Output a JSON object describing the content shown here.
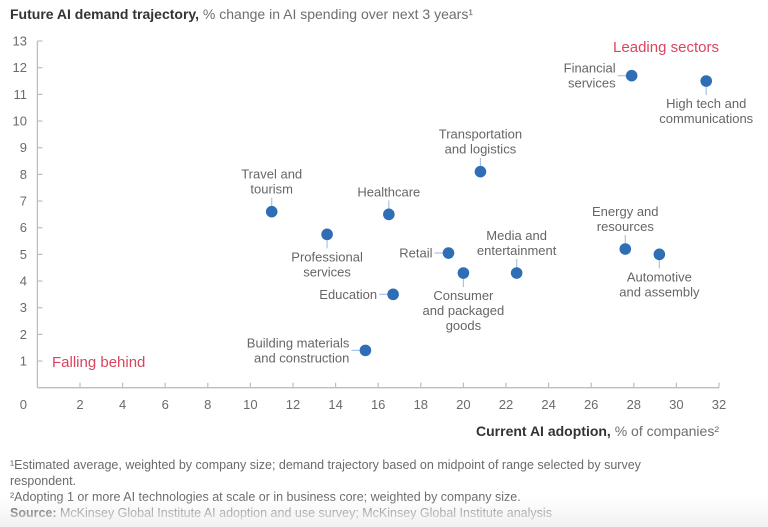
{
  "chart_data": {
    "type": "scatter",
    "title_bold": "Future AI demand trajectory,",
    "title_rest": " % change in AI spending over next 3 years¹",
    "xlabel_bold": "Current AI adoption,",
    "xlabel_rest": " % of companies²",
    "xlim": [
      0,
      32
    ],
    "ylim": [
      0,
      13
    ],
    "xticks": [
      0,
      2,
      4,
      6,
      8,
      10,
      12,
      14,
      16,
      18,
      20,
      22,
      24,
      26,
      28,
      30,
      32
    ],
    "yticks": [
      1,
      2,
      3,
      4,
      5,
      6,
      7,
      8,
      9,
      10,
      11,
      12,
      13
    ],
    "grid": false,
    "point_color": "#2f6db5",
    "annotation_color": "#d9455f",
    "annotations": [
      {
        "text": "Leading sectors",
        "position": "top-right"
      },
      {
        "text": "Falling behind",
        "position": "bottom-left"
      }
    ],
    "points": [
      {
        "label": [
          "Financial",
          "services"
        ],
        "x": 27.9,
        "y": 11.7,
        "label_side": "left"
      },
      {
        "label": [
          "High tech and",
          "communications"
        ],
        "x": 31.4,
        "y": 11.5,
        "label_side": "below"
      },
      {
        "label": [
          "Transportation",
          "and logistics"
        ],
        "x": 20.8,
        "y": 8.1,
        "label_side": "above"
      },
      {
        "label": [
          "Travel and",
          "tourism"
        ],
        "x": 11.0,
        "y": 6.6,
        "label_side": "above"
      },
      {
        "label": [
          "Healthcare"
        ],
        "x": 16.5,
        "y": 6.5,
        "label_side": "above"
      },
      {
        "label": [
          "Professional",
          "services"
        ],
        "x": 13.6,
        "y": 5.75,
        "label_side": "below"
      },
      {
        "label": [
          "Retail"
        ],
        "x": 19.3,
        "y": 5.05,
        "label_side": "left"
      },
      {
        "label": [
          "Media and",
          "entertainment"
        ],
        "x": 22.5,
        "y": 4.3,
        "label_side": "above"
      },
      {
        "label": [
          "Consumer",
          "and packaged",
          "goods"
        ],
        "x": 20.0,
        "y": 4.3,
        "label_side": "below"
      },
      {
        "label": [
          "Education"
        ],
        "x": 16.7,
        "y": 3.5,
        "label_side": "left"
      },
      {
        "label": [
          "Energy and",
          "resources"
        ],
        "x": 27.6,
        "y": 5.2,
        "label_side": "above"
      },
      {
        "label": [
          "Automotive",
          "and assembly"
        ],
        "x": 29.2,
        "y": 5.0,
        "label_side": "below"
      },
      {
        "label": [
          "Building materials",
          "and construction"
        ],
        "x": 15.4,
        "y": 1.4,
        "label_side": "left"
      }
    ]
  },
  "footnotes": {
    "note1": "¹Estimated average, weighted by company size; demand trajectory based on midpoint of range selected by survey respondent.",
    "note2": "²Adopting 1 or more AI technologies at scale or in business core; weighted by company size.",
    "source_label": "Source:",
    "source_text": " McKinsey Global Institute AI adoption and use survey; McKinsey Global Institute analysis"
  }
}
